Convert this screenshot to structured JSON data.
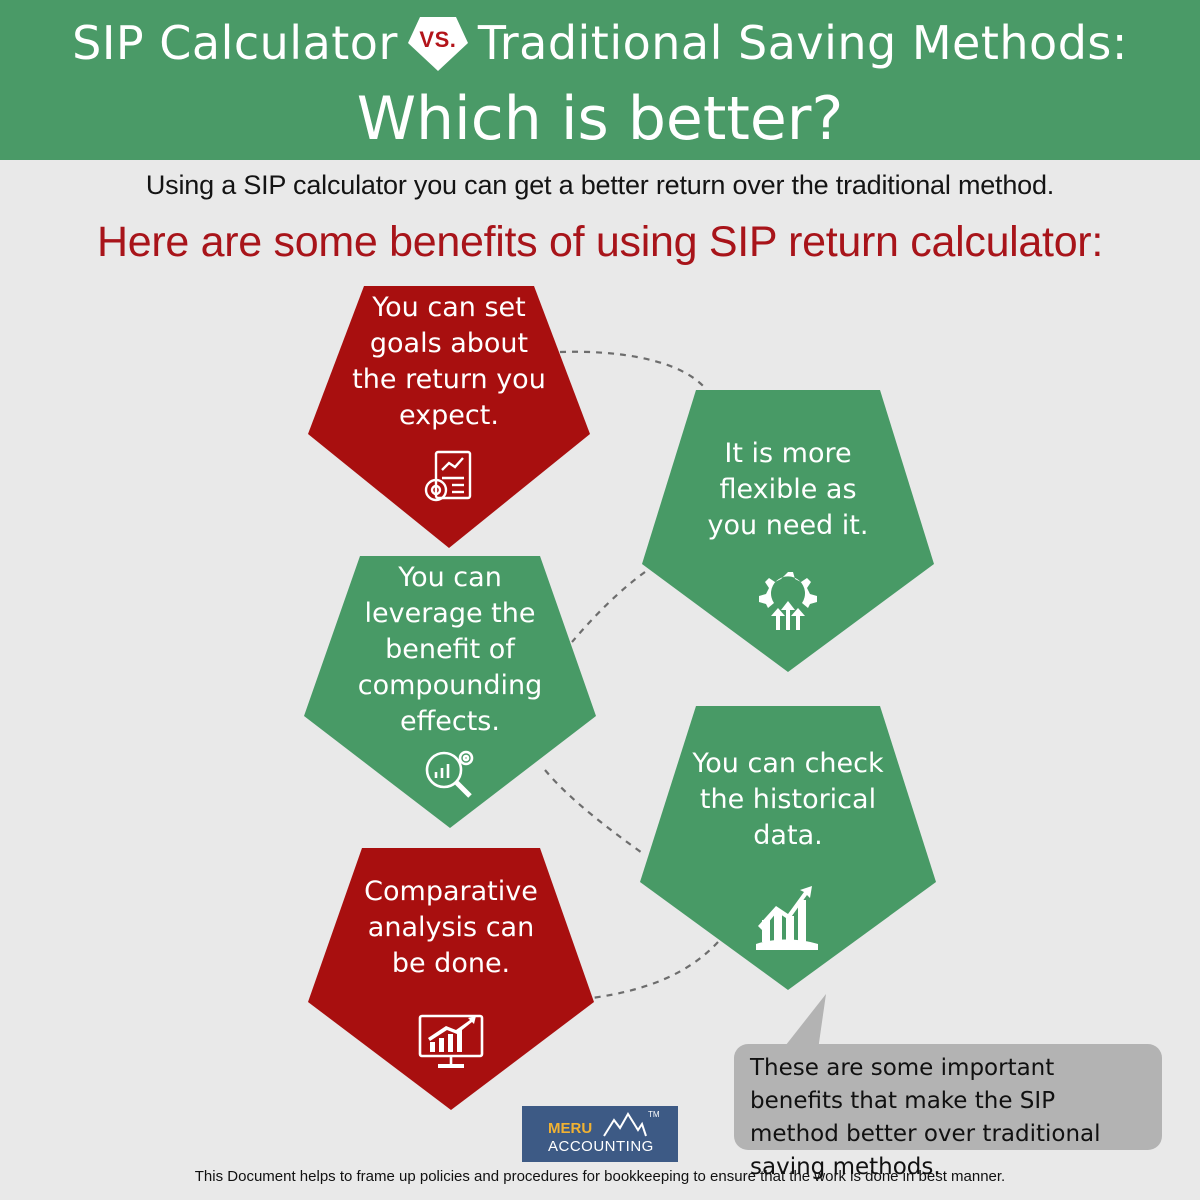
{
  "header": {
    "title_left": "SIP Calculator",
    "vs_label": "VS.",
    "title_right": "Traditional Saving Methods:",
    "title_line2": "Which is better?"
  },
  "intro": "Using a SIP calculator you can get a better return over the traditional method.",
  "subhead": "Here are some benefits of using SIP return calculator:",
  "benefits": [
    {
      "text": "You can set\ngoals about\nthe return you\nexpect.",
      "color": "#a80f0f",
      "icon": "report-gear-icon"
    },
    {
      "text": "It is more\nflexible as\nyou need it.",
      "color": "#489a66",
      "icon": "gear-growth-icon"
    },
    {
      "text": "You can\nleverage the\nbenefit of\ncompounding\neffects.",
      "color": "#489a66",
      "icon": "magnifier-chart-icon"
    },
    {
      "text": "You can check\nthe historical\ndata.",
      "color": "#489a66",
      "icon": "growth-chart-icon"
    },
    {
      "text": "Comparative\nanalysis can\nbe done.",
      "color": "#a80f0f",
      "icon": "monitor-chart-icon"
    }
  ],
  "note": "These are some important benefits that make the SIP method better over traditional saving methods.",
  "logo": {
    "brand_line1": "MERU",
    "brand_line2": "ACCOUNTING",
    "tm": "TM"
  },
  "footer": "This Document helps to frame up policies and procedures for bookkeeping to ensure that the work is done in best manner.",
  "colors": {
    "header_green": "#4a9a67",
    "accent_red": "#a8141a",
    "note_gray": "#b3b3b3"
  }
}
